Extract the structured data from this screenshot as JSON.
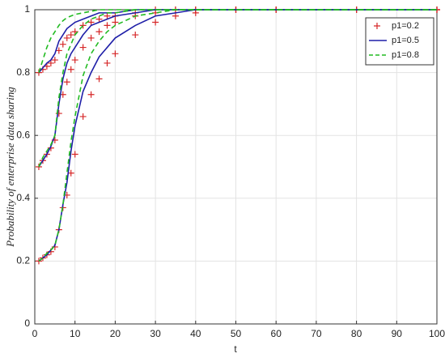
{
  "chart_data": {
    "type": "line",
    "xlabel": "t",
    "ylabel": "Probability of enterprise data sharing",
    "x": [
      1,
      2,
      3,
      4,
      5,
      6,
      7,
      8,
      9,
      10,
      12,
      14,
      16,
      18,
      20,
      25,
      30,
      35,
      40,
      50,
      60,
      80,
      100
    ],
    "series": [
      {
        "name": "p1=0.2",
        "color": "#d62728",
        "style": "markers",
        "lines": [
          {
            "values": [
              0.2,
              0.21,
              0.22,
              0.23,
              0.245,
              0.3,
              0.37,
              0.41,
              0.48,
              0.54,
              0.66,
              0.73,
              0.78,
              0.83,
              0.86,
              0.92,
              0.96,
              0.98,
              0.99,
              1,
              1,
              1,
              1
            ]
          },
          {
            "values": [
              0.5,
              0.52,
              0.54,
              0.56,
              0.585,
              0.67,
              0.73,
              0.77,
              0.81,
              0.84,
              0.88,
              0.91,
              0.93,
              0.95,
              0.96,
              0.98,
              0.99,
              1,
              1,
              1,
              1,
              1,
              1
            ]
          },
          {
            "values": [
              0.8,
              0.81,
              0.82,
              0.83,
              0.84,
              0.87,
              0.89,
              0.91,
              0.92,
              0.93,
              0.95,
              0.96,
              0.97,
              0.98,
              0.98,
              0.99,
              1,
              1,
              1,
              1,
              1,
              1,
              1
            ]
          }
        ]
      },
      {
        "name": "p1=0.5",
        "color": "#1f1fa8",
        "style": "solid",
        "lines": [
          {
            "values": [
              0.2,
              0.21,
              0.22,
              0.235,
              0.25,
              0.3,
              0.38,
              0.45,
              0.55,
              0.63,
              0.74,
              0.8,
              0.85,
              0.88,
              0.91,
              0.95,
              0.98,
              0.99,
              1,
              1,
              1,
              1,
              1
            ]
          },
          {
            "values": [
              0.5,
              0.52,
              0.54,
              0.565,
              0.6,
              0.7,
              0.78,
              0.83,
              0.86,
              0.88,
              0.92,
              0.95,
              0.96,
              0.97,
              0.98,
              0.99,
              1,
              1,
              1,
              1,
              1,
              1,
              1
            ]
          },
          {
            "values": [
              0.8,
              0.815,
              0.83,
              0.84,
              0.86,
              0.9,
              0.92,
              0.94,
              0.95,
              0.96,
              0.97,
              0.98,
              0.99,
              0.99,
              0.99,
              1,
              1,
              1,
              1,
              1,
              1,
              1,
              1
            ]
          }
        ]
      },
      {
        "name": "p1=0.8",
        "color": "#22bb22",
        "style": "dashed",
        "lines": [
          {
            "values": [
              0.2,
              0.21,
              0.225,
              0.235,
              0.25,
              0.3,
              0.38,
              0.48,
              0.58,
              0.66,
              0.79,
              0.86,
              0.9,
              0.93,
              0.95,
              0.98,
              0.99,
              1,
              1,
              1,
              1,
              1,
              1
            ]
          },
          {
            "values": [
              0.5,
              0.53,
              0.55,
              0.57,
              0.6,
              0.72,
              0.8,
              0.86,
              0.89,
              0.92,
              0.95,
              0.97,
              0.98,
              0.99,
              0.99,
              1,
              1,
              1,
              1,
              1,
              1,
              1,
              1
            ]
          },
          {
            "values": [
              0.8,
              0.84,
              0.88,
              0.91,
              0.93,
              0.95,
              0.965,
              0.975,
              0.98,
              0.985,
              0.99,
              0.995,
              1,
              1,
              1,
              1,
              1,
              1,
              1,
              1,
              1,
              1,
              1
            ]
          }
        ]
      }
    ],
    "xlim": [
      0,
      100
    ],
    "xticks": [
      0,
      10,
      20,
      30,
      40,
      50,
      60,
      70,
      80,
      90,
      100
    ],
    "ylim": [
      0,
      1
    ],
    "yticks": [
      0,
      0.2,
      0.4,
      0.6,
      0.8,
      1
    ],
    "grid": true,
    "legend": "upper right"
  }
}
